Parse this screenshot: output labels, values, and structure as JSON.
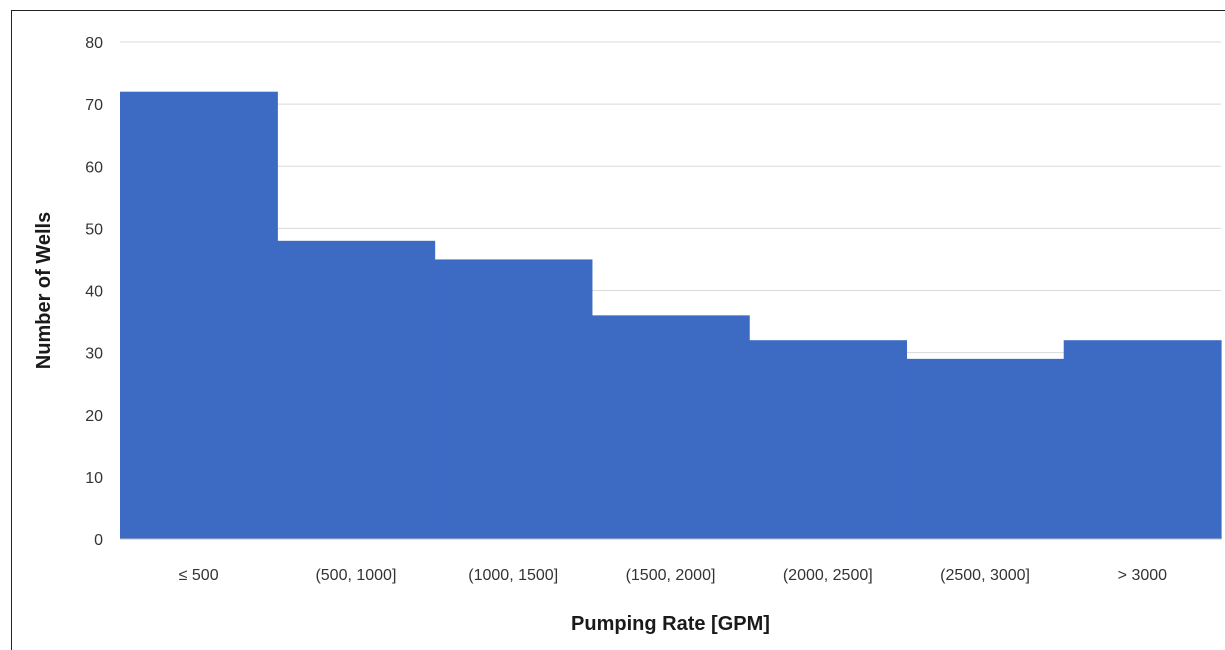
{
  "chart_data": {
    "type": "bar",
    "title": "",
    "xlabel": "Pumping Rate [GPM]",
    "ylabel": "Number of Wells",
    "categories": [
      "≤ 500",
      "(500, 1000]",
      "(1000, 1500]",
      "(1500, 2000]",
      "(2000, 2500]",
      "(2500, 3000]",
      "> 3000"
    ],
    "values": [
      72,
      48,
      45,
      36,
      32,
      29,
      32
    ],
    "ylim": [
      0,
      80
    ],
    "yticks": [
      0,
      10,
      20,
      30,
      40,
      50,
      60,
      70,
      80
    ],
    "grid": true,
    "legend": "none",
    "bar_gap": 0,
    "colors": {
      "bar": "#3d6bc4",
      "grid": "#d9d9d9",
      "baseline": "#bfbfbf"
    }
  }
}
